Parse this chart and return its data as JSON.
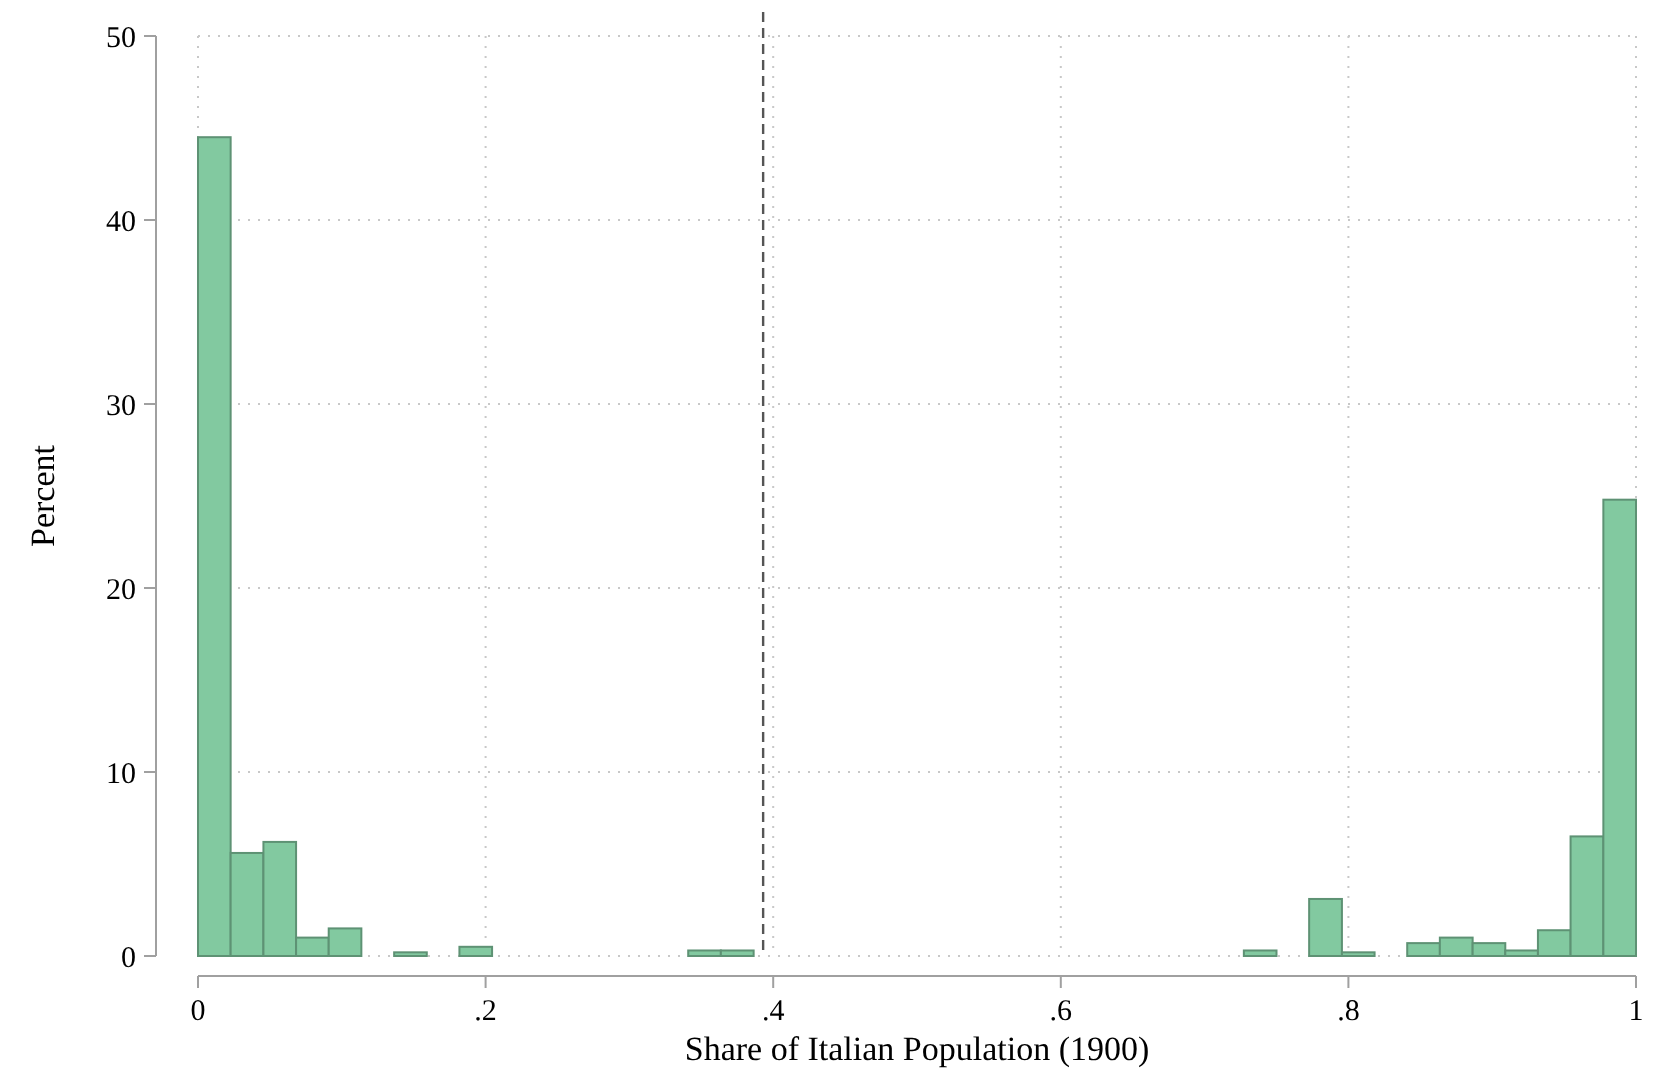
{
  "chart_data": {
    "type": "histogram",
    "xlabel": "Share of Italian Population (1900)",
    "ylabel": "Percent",
    "bins": [
      0,
      0.0227,
      0.0455,
      0.0682,
      0.0909,
      0.1136,
      0.1364,
      0.1591,
      0.1818,
      0.2045,
      0.2273,
      0.25,
      0.2727,
      0.2955,
      0.3182,
      0.3409,
      0.3636,
      0.3864,
      0.4091,
      0.4318,
      0.4545,
      0.4773,
      0.5,
      0.5227,
      0.5455,
      0.5682,
      0.5909,
      0.6136,
      0.6364,
      0.6591,
      0.6818,
      0.7045,
      0.7273,
      0.75,
      0.7727,
      0.7955,
      0.8182,
      0.8409,
      0.8636,
      0.8864,
      0.9091,
      0.9318,
      0.9545,
      0.9773,
      1
    ],
    "values": [
      44.5,
      5.6,
      6.2,
      1.0,
      1.5,
      0,
      0.2,
      0,
      0.5,
      0,
      0,
      0,
      0,
      0,
      0,
      0.3,
      0.3,
      0,
      0,
      0,
      0,
      0,
      0,
      0,
      0,
      0,
      0,
      0,
      0,
      0,
      0,
      0,
      0.3,
      0,
      3.1,
      0.2,
      0,
      0.7,
      1.0,
      0.7,
      0.3,
      1.4,
      6.5,
      24.8
    ],
    "color": "#82c9a0",
    "xlim": [
      0,
      1
    ],
    "xticks": [
      {
        "value": 0,
        "label": "0"
      },
      {
        "value": 0.2,
        "label": ".2"
      },
      {
        "value": 0.4,
        "label": ".4"
      },
      {
        "value": 0.6,
        "label": ".6"
      },
      {
        "value": 0.8,
        "label": ".8"
      },
      {
        "value": 1,
        "label": "1"
      }
    ],
    "ylim": [
      0,
      50
    ],
    "yticks": [
      0,
      10,
      20,
      30,
      40,
      50
    ],
    "grid": true,
    "ref_lines": [
      {
        "axis": "x",
        "value": 0.393,
        "line_style": "dashed",
        "color": "#555555"
      }
    ]
  }
}
